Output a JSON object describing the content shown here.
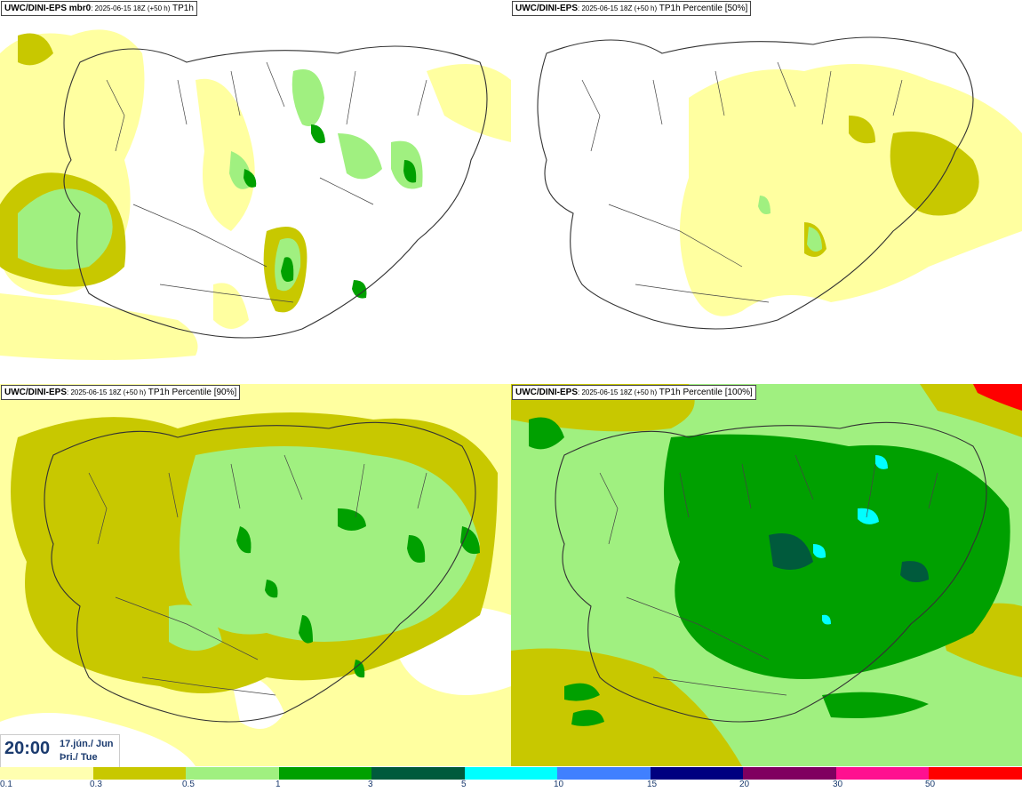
{
  "panels": [
    {
      "model": "UWC/DINI-EPS",
      "suffix": " mbr0",
      "run": ": 2025-06-15 18Z (+50 h)",
      "field": " TP1h"
    },
    {
      "model": "UWC/DINI-EPS",
      "suffix": "",
      "run": ": 2025-06-15 18Z (+50 h)",
      "field": " TP1h Percentile [50%]"
    },
    {
      "model": "UWC/DINI-EPS",
      "suffix": "",
      "run": ": 2025-06-15 18Z (+50 h)",
      "field": " TP1h Percentile [90%]"
    },
    {
      "model": "UWC/DINI-EPS",
      "suffix": "",
      "run": ": 2025-06-15 18Z (+50 h)",
      "field": " TP1h Percentile [100%]"
    }
  ],
  "time": {
    "clock": "20:00",
    "date": "17.jún./ Jun",
    "weekday": "Þri./ Tue"
  },
  "legend": {
    "ticks": [
      "0.1",
      "0.3",
      "0.5",
      "1",
      "3",
      "5",
      "10",
      "15",
      "20",
      "30",
      "50"
    ],
    "colors": [
      "#ffffb0",
      "#c8c800",
      "#a0f080",
      "#00a000",
      "#005a3c",
      "#00ffff",
      "#4080ff",
      "#000080",
      "#800060",
      "#ff1090",
      "#ff0000"
    ]
  },
  "palette": {
    "light_yellow": "#ffffa0",
    "olive": "#c8c800",
    "light_green": "#a0f080",
    "green": "#00a000",
    "dark_green": "#005a3c",
    "cyan": "#00ffff",
    "coast": "#333333"
  }
}
